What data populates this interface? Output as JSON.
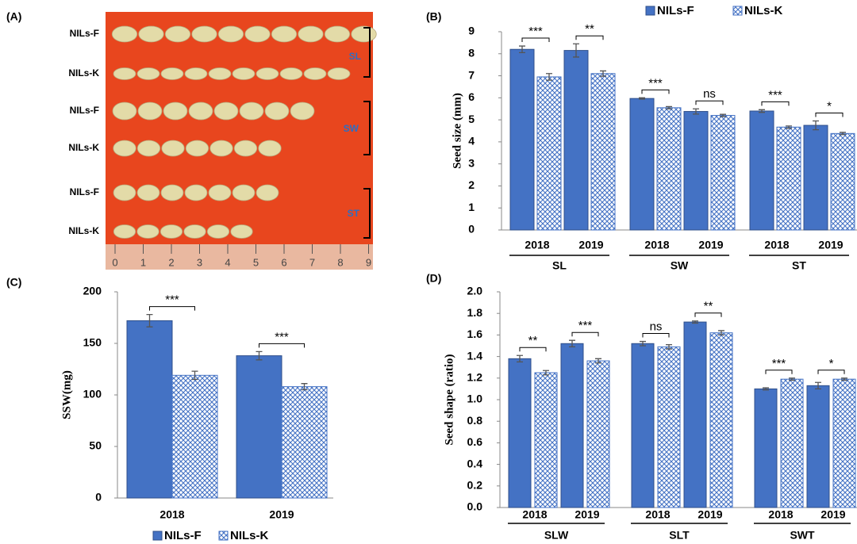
{
  "photo": {
    "panel_label": "(A)",
    "rows": [
      "NILs-F",
      "NILs-K",
      "NILs-F",
      "NILs-K",
      "NILs-F",
      "NILs-K"
    ],
    "brackets": [
      "SL",
      "SW",
      "ST"
    ],
    "ruler": [
      0,
      1,
      2,
      3,
      4,
      5,
      6,
      7,
      8,
      9
    ]
  },
  "chart_data": [
    {
      "type": "bar",
      "panel_label": "(B)",
      "y_label": "Seed size (mm)",
      "groups": [
        "SL",
        "SW",
        "ST"
      ],
      "categories": [
        "2018",
        "2019",
        "2018",
        "2019",
        "2018",
        "2019"
      ],
      "series": [
        {
          "name": "NILs-F",
          "color": "#4472c4",
          "values": [
            8.2,
            8.15,
            5.97,
            5.38,
            5.4,
            4.75
          ],
          "errors": [
            0.15,
            0.3,
            0.03,
            0.12,
            0.06,
            0.2
          ]
        },
        {
          "name": "NILs-K",
          "color": "#4472c4",
          "fill": "crosshatch",
          "values": [
            6.95,
            7.1,
            5.55,
            5.2,
            4.67,
            4.38
          ],
          "errors": [
            0.15,
            0.12,
            0.05,
            0.05,
            0.05,
            0.05
          ]
        }
      ],
      "significance": [
        "***",
        "**",
        "***",
        "ns",
        "***",
        "*"
      ],
      "ylim": [
        0,
        9
      ],
      "yticks": [
        0,
        1,
        2,
        3,
        4,
        5,
        6,
        7,
        8,
        9
      ],
      "legend": "top"
    },
    {
      "type": "bar",
      "panel_label": "(C)",
      "y_label": "SSW(mg)",
      "categories": [
        "2018",
        "2019"
      ],
      "series": [
        {
          "name": "NILs-F",
          "color": "#4472c4",
          "values": [
            172,
            138
          ],
          "errors": [
            6,
            4
          ]
        },
        {
          "name": "NILs-K",
          "color": "#4472c4",
          "fill": "crosshatch",
          "values": [
            119,
            108
          ],
          "errors": [
            4,
            3
          ]
        }
      ],
      "significance": [
        "***",
        "***"
      ],
      "ylim": [
        0,
        200
      ],
      "yticks": [
        0,
        50,
        100,
        150,
        200
      ],
      "legend": "bottom"
    },
    {
      "type": "bar",
      "panel_label": "(D)",
      "y_label": "Seed shape (ratio)",
      "groups": [
        "SLW",
        "SLT",
        "SWT"
      ],
      "categories": [
        "2018",
        "2019",
        "2018",
        "2019",
        "2018",
        "2019"
      ],
      "series": [
        {
          "name": "NILs-F",
          "color": "#4472c4",
          "values": [
            1.38,
            1.52,
            1.52,
            1.72,
            1.1,
            1.13
          ],
          "errors": [
            0.03,
            0.03,
            0.02,
            0.01,
            0.01,
            0.03
          ]
        },
        {
          "name": "NILs-K",
          "color": "#4472c4",
          "fill": "crosshatch",
          "values": [
            1.25,
            1.36,
            1.49,
            1.62,
            1.19,
            1.19
          ],
          "errors": [
            0.02,
            0.02,
            0.02,
            0.02,
            0.01,
            0.01
          ]
        }
      ],
      "significance": [
        "**",
        "***",
        "ns",
        "**",
        "***",
        "*"
      ],
      "ylim": [
        0,
        2
      ],
      "yticks": [
        {
          "value": 0,
          "label": "0.0"
        },
        0.2,
        0.4,
        0.6,
        0.8,
        {
          "value": 1,
          "label": "1.0"
        },
        1.2,
        1.4,
        1.6,
        1.8,
        {
          "value": 2,
          "label": "2.0"
        }
      ],
      "legend": "none"
    }
  ]
}
